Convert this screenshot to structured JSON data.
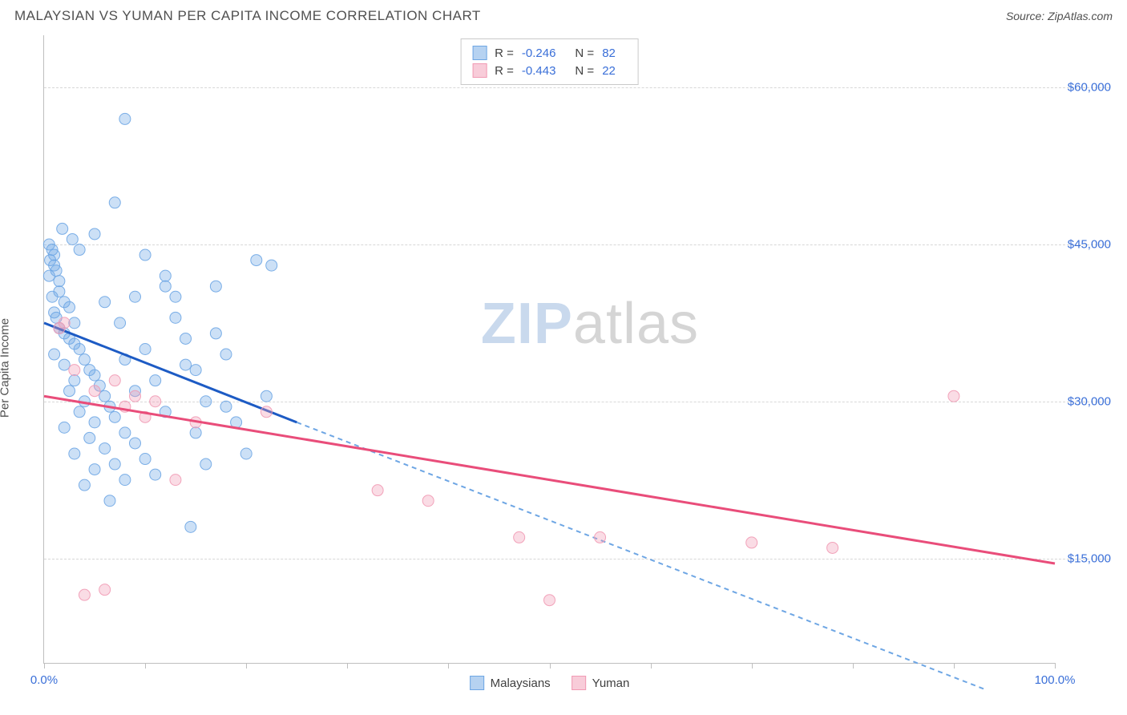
{
  "header": {
    "title": "MALAYSIAN VS YUMAN PER CAPITA INCOME CORRELATION CHART",
    "source_label": "Source: ZipAtlas.com"
  },
  "chart": {
    "type": "scatter",
    "y_axis_label": "Per Capita Income",
    "xlim": [
      0,
      100
    ],
    "ylim": [
      5000,
      65000
    ],
    "x_ticks": [
      0,
      10,
      20,
      30,
      40,
      50,
      60,
      70,
      80,
      90,
      100
    ],
    "x_tick_labels": {
      "0": "0.0%",
      "100": "100.0%"
    },
    "y_gridlines": [
      15000,
      30000,
      45000,
      60000
    ],
    "y_tick_labels": {
      "15000": "$15,000",
      "30000": "$30,000",
      "45000": "$45,000",
      "60000": "$60,000"
    },
    "background_color": "#ffffff",
    "grid_color": "#d7d7d7",
    "axis_color": "#bfbfbf",
    "tick_label_color": "#3a6fd8",
    "marker_radius": 7,
    "marker_fill_opacity": 0.35,
    "marker_stroke_opacity": 0.9,
    "line_width_solid": 3,
    "line_width_dashed": 2,
    "dash_pattern": "6,5"
  },
  "watermark": {
    "part1": "ZIP",
    "part2": "atlas"
  },
  "series": [
    {
      "name": "Malaysians",
      "color": "#6ea6e4",
      "line_color": "#1d5bc4",
      "R": "-0.246",
      "N": "82",
      "trend_solid": {
        "x1": 0,
        "y1": 37500,
        "x2": 25,
        "y2": 28000
      },
      "trend_dashed": {
        "x1": 25,
        "y1": 28000,
        "x2": 93,
        "y2": 2500
      },
      "points": [
        [
          0.5,
          45000
        ],
        [
          0.8,
          44500
        ],
        [
          1.0,
          44000
        ],
        [
          1.0,
          43000
        ],
        [
          1.2,
          42500
        ],
        [
          0.5,
          42000
        ],
        [
          1.5,
          41500
        ],
        [
          1.5,
          40500
        ],
        [
          0.8,
          40000
        ],
        [
          2.0,
          39500
        ],
        [
          2.5,
          39000
        ],
        [
          1.0,
          38500
        ],
        [
          1.2,
          38000
        ],
        [
          3.0,
          37500
        ],
        [
          1.5,
          37000
        ],
        [
          2.0,
          36500
        ],
        [
          2.5,
          36000
        ],
        [
          3.0,
          35500
        ],
        [
          3.5,
          35000
        ],
        [
          1.0,
          34500
        ],
        [
          4.0,
          34000
        ],
        [
          2.0,
          33500
        ],
        [
          4.5,
          33000
        ],
        [
          5.0,
          32500
        ],
        [
          3.0,
          32000
        ],
        [
          5.5,
          31500
        ],
        [
          2.5,
          31000
        ],
        [
          6.0,
          30500
        ],
        [
          4.0,
          30000
        ],
        [
          6.5,
          29500
        ],
        [
          3.5,
          29000
        ],
        [
          7.0,
          28500
        ],
        [
          5.0,
          28000
        ],
        [
          2.0,
          27500
        ],
        [
          8.0,
          27000
        ],
        [
          4.5,
          26500
        ],
        [
          9.0,
          26000
        ],
        [
          6.0,
          25500
        ],
        [
          3.0,
          25000
        ],
        [
          10.0,
          24500
        ],
        [
          7.0,
          24000
        ],
        [
          5.0,
          23500
        ],
        [
          11.0,
          23000
        ],
        [
          8.0,
          22500
        ],
        [
          4.0,
          22000
        ],
        [
          12.0,
          41000
        ],
        [
          9.0,
          40000
        ],
        [
          6.0,
          39500
        ],
        [
          13.0,
          38000
        ],
        [
          7.5,
          37500
        ],
        [
          14.0,
          36000
        ],
        [
          10.0,
          35000
        ],
        [
          8.0,
          34000
        ],
        [
          15.0,
          33000
        ],
        [
          11.0,
          32000
        ],
        [
          9.0,
          31000
        ],
        [
          16.0,
          30000
        ],
        [
          12.0,
          29000
        ],
        [
          7.0,
          49000
        ],
        [
          17.0,
          41000
        ],
        [
          13.0,
          40000
        ],
        [
          18.0,
          34500
        ],
        [
          14.0,
          33500
        ],
        [
          19.0,
          28000
        ],
        [
          15.0,
          27000
        ],
        [
          20.0,
          25000
        ],
        [
          16.0,
          24000
        ],
        [
          21.0,
          43500
        ],
        [
          17.0,
          36500
        ],
        [
          22.0,
          30500
        ],
        [
          18.0,
          29500
        ],
        [
          12.0,
          42000
        ],
        [
          10.0,
          44000
        ],
        [
          8.0,
          57000
        ],
        [
          22.5,
          43000
        ],
        [
          14.5,
          18000
        ],
        [
          6.5,
          20500
        ],
        [
          3.5,
          44500
        ],
        [
          5.0,
          46000
        ],
        [
          1.8,
          46500
        ],
        [
          2.8,
          45500
        ],
        [
          0.6,
          43500
        ]
      ]
    },
    {
      "name": "Yuman",
      "color": "#f19ab4",
      "line_color": "#e94d7a",
      "R": "-0.443",
      "N": "22",
      "trend_solid": {
        "x1": 0,
        "y1": 30500,
        "x2": 100,
        "y2": 14500
      },
      "trend_dashed": null,
      "points": [
        [
          2.0,
          37500
        ],
        [
          3.0,
          33000
        ],
        [
          5.0,
          31000
        ],
        [
          8.0,
          29500
        ],
        [
          10.0,
          28500
        ],
        [
          13.0,
          22500
        ],
        [
          15.0,
          28000
        ],
        [
          6.0,
          12000
        ],
        [
          4.0,
          11500
        ],
        [
          22.0,
          29000
        ],
        [
          33.0,
          21500
        ],
        [
          38.0,
          20500
        ],
        [
          47.0,
          17000
        ],
        [
          55.0,
          17000
        ],
        [
          70.0,
          16500
        ],
        [
          78.0,
          16000
        ],
        [
          90.0,
          30500
        ],
        [
          11.0,
          30000
        ],
        [
          7.0,
          32000
        ],
        [
          9.0,
          30500
        ],
        [
          1.5,
          37000
        ],
        [
          50.0,
          11000
        ]
      ]
    }
  ],
  "legend_top": {
    "r_label": "R =",
    "n_label": "N ="
  },
  "legend_bottom": {}
}
